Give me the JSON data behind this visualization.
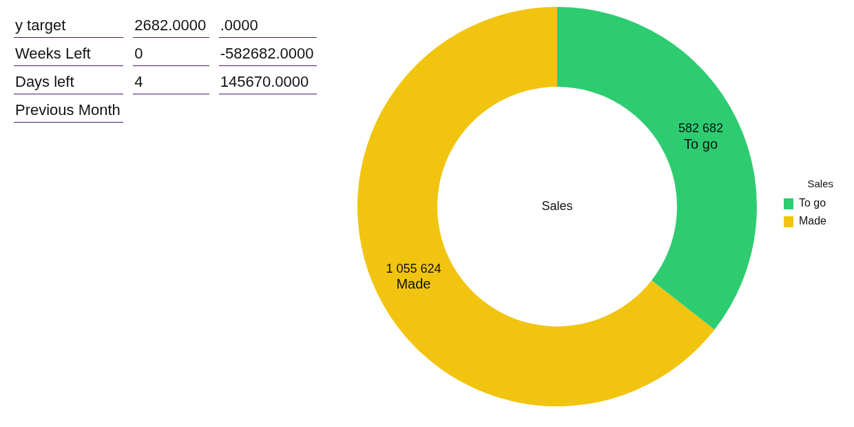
{
  "chart_data": {
    "type": "donut",
    "title": "Sales",
    "legend_title": "Sales",
    "categories": [
      "To go",
      "Made"
    ],
    "values": [
      582682,
      1055624
    ],
    "colors": [
      "#2ecc71",
      "#f1c40f"
    ],
    "value_labels": [
      "582 682",
      "1 055 624"
    ],
    "legend": "right",
    "annotations": [
      "y target",
      "2682.0000",
      ".0000",
      "Weeks Left",
      "0",
      "-582682.0000",
      "Days left",
      "4",
      "145670.0000",
      "Previous Month"
    ]
  }
}
